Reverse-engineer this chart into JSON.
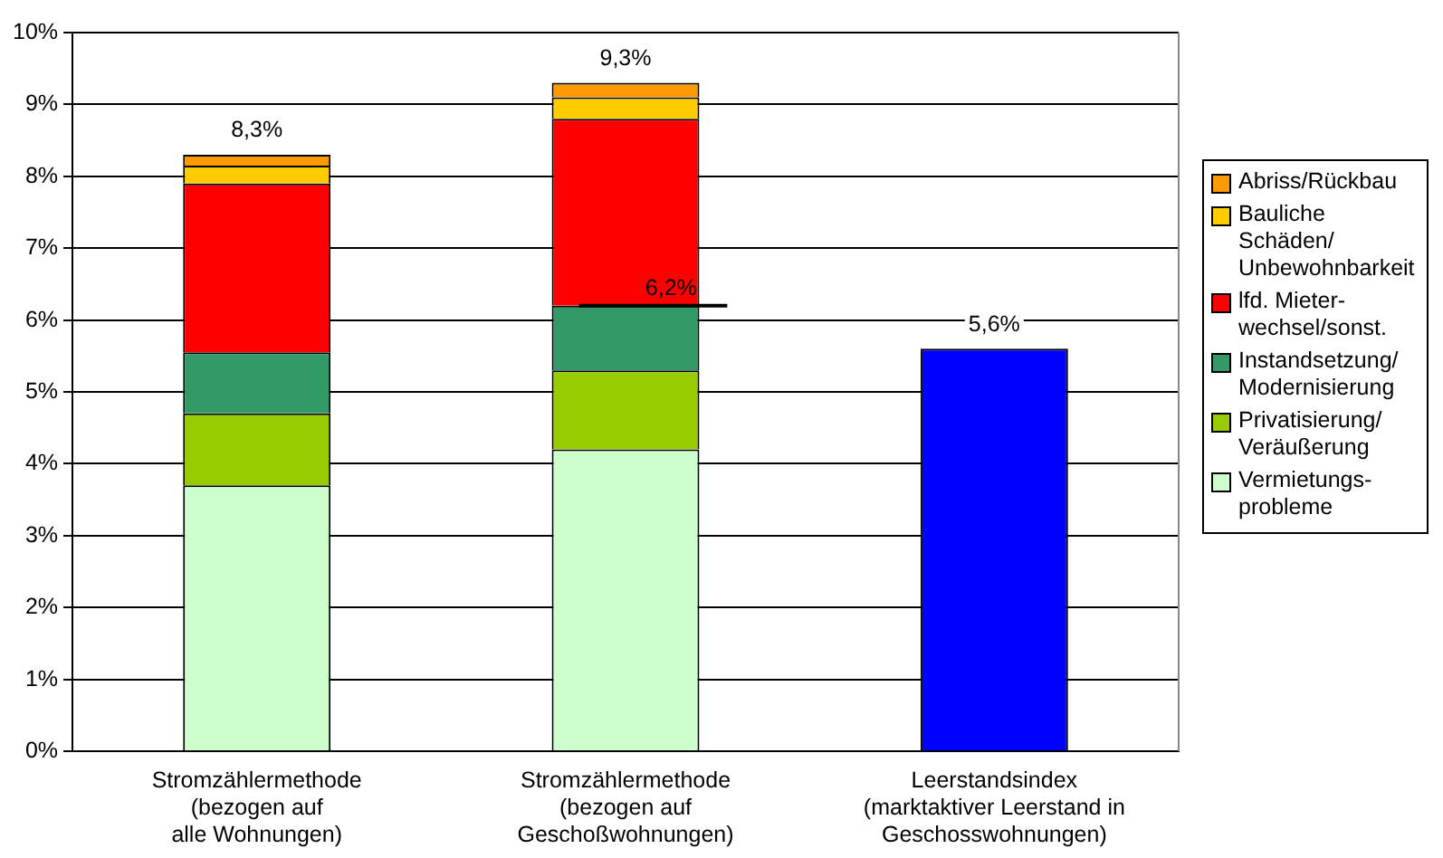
{
  "chart_data": {
    "type": "bar",
    "stacked": true,
    "categories": [
      "Stromzählermethode\n(bezogen auf\nalle Wohnungen)",
      "Stromzählermethode\n(bezogen auf\nGeschoßwohnungen)",
      "Leerstandsindex\n(marktaktiver Leerstand in\nGeschosswohnungen)"
    ],
    "series": [
      {
        "name": "Vermietungs-\nprobleme",
        "color": "#ccffcc",
        "values": [
          3.7,
          4.2,
          null
        ]
      },
      {
        "name": "Privatisierung/\nVeräußerung",
        "color": "#99cc00",
        "values": [
          1.0,
          1.1,
          null
        ]
      },
      {
        "name": "Instandsetzung/\nModernisierung",
        "color": "#339966",
        "values": [
          0.85,
          0.9,
          null
        ]
      },
      {
        "name": "lfd. Mieter-\nwechsel/sonst.",
        "color": "#ff0000",
        "values": [
          2.35,
          2.6,
          null
        ]
      },
      {
        "name": "Bauliche Schäden/\nUnbewohnbarkeit",
        "color": "#ffcc00",
        "values": [
          0.25,
          0.3,
          null
        ]
      },
      {
        "name": "Abriss/Rückbau",
        "color": "#ff9900",
        "values": [
          0.15,
          0.2,
          null
        ]
      },
      {
        "color": "#0000ff",
        "values": [
          null,
          null,
          5.6
        ]
      }
    ],
    "totals": [
      "8,3%",
      "9,3%",
      "5,6%"
    ],
    "ref_lines": [
      {
        "axis": "y",
        "value": 6.2,
        "label": "6,2%",
        "color": "#000000"
      }
    ],
    "ylim": [
      0,
      10
    ],
    "yticks": [
      {
        "value": 0,
        "label": "0%"
      },
      {
        "value": 1,
        "label": "1%"
      },
      {
        "value": 2,
        "label": "2%"
      },
      {
        "value": 3,
        "label": "3%"
      },
      {
        "value": 4,
        "label": "4%"
      },
      {
        "value": 5,
        "label": "5%"
      },
      {
        "value": 6,
        "label": "6%"
      },
      {
        "value": 7,
        "label": "7%"
      },
      {
        "value": 8,
        "label": "8%"
      },
      {
        "value": 9,
        "label": "9%"
      },
      {
        "value": 10,
        "label": "10%"
      }
    ],
    "grid": "y",
    "legend": "right"
  }
}
